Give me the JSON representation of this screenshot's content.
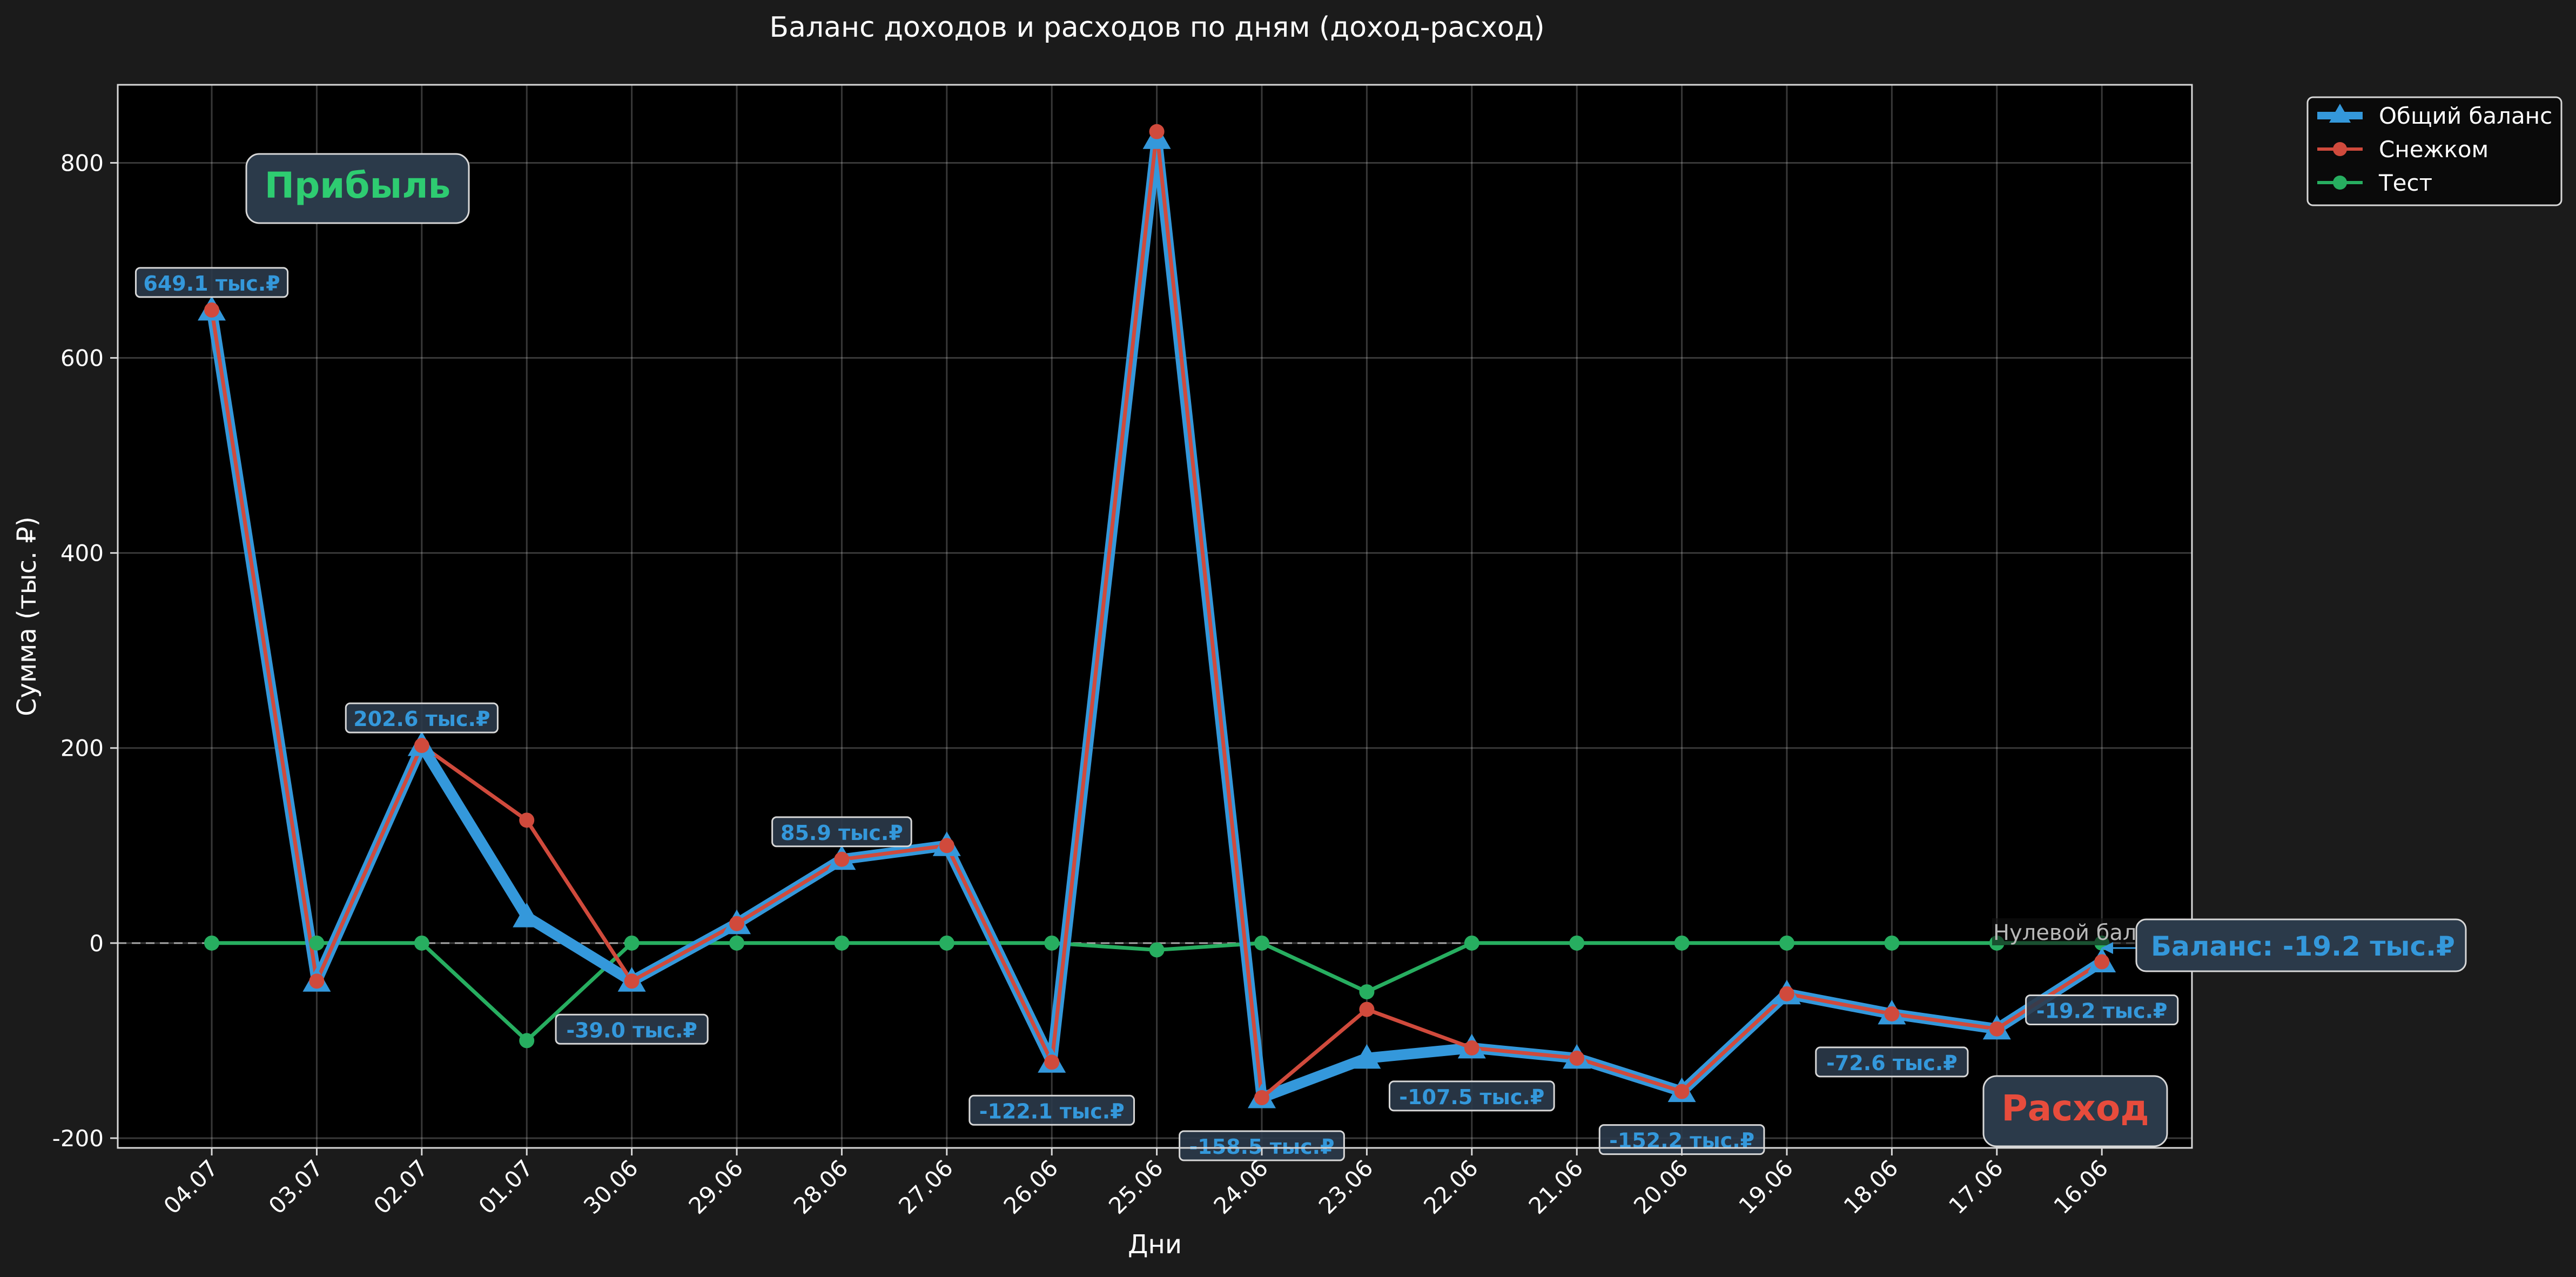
{
  "chart_data": {
    "type": "line",
    "title": "Баланс доходов и расходов по дням (доход-расход)",
    "xlabel": "Дни",
    "ylabel": "Сумма (тыс. ₽)",
    "ylim": [
      -210,
      880
    ],
    "yticks": [
      -200,
      0,
      200,
      400,
      600,
      800
    ],
    "grid": true,
    "legend_position": "outside-top-right",
    "categories": [
      "04.07",
      "03.07",
      "02.07",
      "01.07",
      "30.06",
      "29.06",
      "28.06",
      "27.06",
      "26.06",
      "25.06",
      "24.06",
      "23.06",
      "22.06",
      "21.06",
      "20.06",
      "19.06",
      "18.06",
      "17.06",
      "16.06"
    ],
    "series": [
      {
        "name": "Общий баланс",
        "color": "#3498db",
        "marker": "triangle",
        "values": [
          649.1,
          -39.0,
          202.6,
          27.0,
          -39.0,
          20.0,
          85.9,
          100.0,
          -122.1,
          825.0,
          -158.5,
          -118.0,
          -107.5,
          -118.0,
          -152.2,
          -52.0,
          -72.6,
          -88.0,
          -19.2
        ]
      },
      {
        "name": "Снежком",
        "color": "#d04a3c",
        "marker": "circle",
        "values": [
          649.1,
          -39.0,
          202.6,
          126.0,
          -39.0,
          20.0,
          85.9,
          100.0,
          -122.1,
          832.0,
          -158.5,
          -68.0,
          -107.5,
          -118.0,
          -152.2,
          -52.0,
          -72.6,
          -88.0,
          -19.2
        ]
      },
      {
        "name": "Тест",
        "color": "#27ae60",
        "marker": "circle",
        "values": [
          0,
          0,
          0,
          -100,
          0,
          0,
          0,
          0,
          0,
          -7,
          0,
          -50,
          0,
          0,
          0,
          0,
          0,
          0,
          0
        ]
      }
    ],
    "point_labels": [
      {
        "index": 0,
        "text": "649.1 тыс.₽",
        "position": "above"
      },
      {
        "index": 2,
        "text": "202.6 тыс.₽",
        "position": "above"
      },
      {
        "index": 4,
        "text": "-39.0 тыс.₽",
        "position": "below"
      },
      {
        "index": 6,
        "text": "85.9 тыс.₽",
        "position": "above"
      },
      {
        "index": 8,
        "text": "-122.1 тыс.₽",
        "position": "below"
      },
      {
        "index": 10,
        "text": "-158.5 тыс.₽",
        "position": "below"
      },
      {
        "index": 12,
        "text": "-107.5 тыс.₽",
        "position": "below"
      },
      {
        "index": 14,
        "text": "-152.2 тыс.₽",
        "position": "below"
      },
      {
        "index": 16,
        "text": "-72.6 тыс.₽",
        "position": "below"
      },
      {
        "index": 18,
        "text": "-19.2 тыс.₽",
        "position": "below"
      }
    ],
    "annotations": {
      "profit_label": "Прибыль",
      "expense_label": "Расход",
      "zero_line_label": "Нулевой баланс",
      "final_balance": "Баланс: -19.2 тыс.₽"
    },
    "colors": {
      "background": "#1b1b1b",
      "plot_background": "#000000",
      "profit": "#2ecc71",
      "expense": "#e74c3c",
      "balance": "#3498db"
    }
  }
}
